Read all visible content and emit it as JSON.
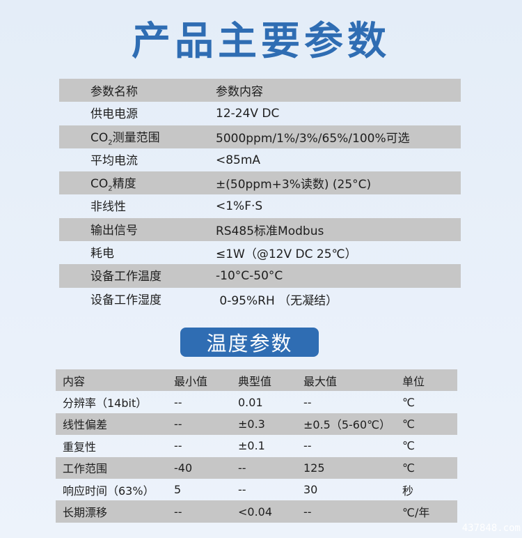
{
  "title": "产品主要参数",
  "main_params": {
    "header": [
      "参数名称",
      "参数内容"
    ],
    "rows": [
      {
        "name_pre": "",
        "sub": "",
        "name": "供电电源",
        "value": "12-24V DC"
      },
      {
        "name_pre": "CO",
        "sub": "2",
        "name": "测量范围",
        "value": "5000ppm/1%/3%/65%/100%可选"
      },
      {
        "name_pre": "",
        "sub": "",
        "name": "平均电流",
        "value": "<85mA"
      },
      {
        "name_pre": "CO",
        "sub": "2",
        "name": "精度",
        "value": "±(50ppm+3%读数) (25°C)"
      },
      {
        "name_pre": "",
        "sub": "",
        "name": "非线性",
        "value": "<1%F·S"
      },
      {
        "name_pre": "",
        "sub": "",
        "name": "输出信号",
        "value": "RS485标准Modbus"
      },
      {
        "name_pre": "",
        "sub": "",
        "name": "耗电",
        "value": "≤1W（@12V DC 25℃）"
      },
      {
        "name_pre": "",
        "sub": "",
        "name": "设备工作温度",
        "value": "-10°C-50°C"
      },
      {
        "name_pre": "",
        "sub": "",
        "name": "设备工作湿度",
        "value": " 0-95%RH （无凝结）"
      }
    ]
  },
  "temp_section": {
    "badge": "温度参数",
    "header": [
      "内容",
      "最小值",
      "典型值",
      "最大值",
      "单位"
    ],
    "rows": [
      [
        "分辨率（14bit）",
        "--",
        "0.01",
        "--",
        "℃"
      ],
      [
        "线性偏差",
        "--",
        "±0.3",
        "±0.5（5-60℃）",
        "℃"
      ],
      [
        "重复性",
        "--",
        "±0.1",
        "--",
        "℃"
      ],
      [
        "工作范围",
        "-40",
        "--",
        "125",
        "℃"
      ],
      [
        "响应时间（63%）",
        "5",
        "--",
        "30",
        "秒"
      ],
      [
        "长期漂移",
        "--",
        "<0.04",
        "--",
        "℃/年"
      ]
    ]
  },
  "watermark": "437848.com",
  "colors": {
    "accent": "#2f6db3",
    "row_gray": "#c6c6c6"
  }
}
